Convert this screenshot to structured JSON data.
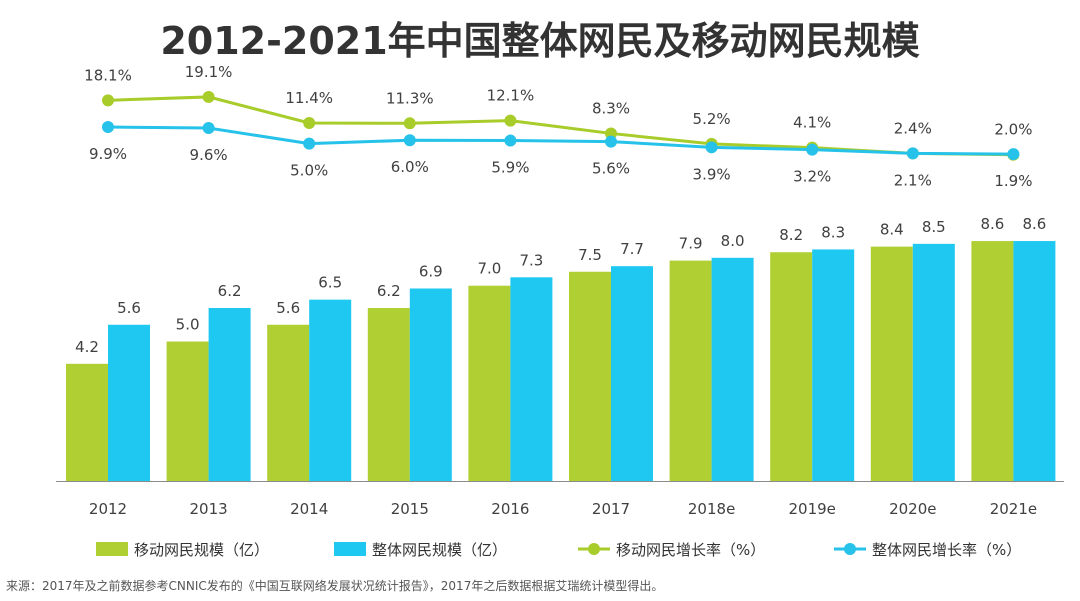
{
  "title": "2012-2021年中国整体网民及移动网民规模",
  "source": "来源：2017年及之前数据参考CNNIC发布的《中国互联网络发展状况统计报告》，2017年之后数据根据艾瑞统计模型得出。",
  "colors": {
    "mobile_users": "#B0CF33",
    "total_users": "#1EC8F0",
    "mobile_growth": "#A8CC2A",
    "total_growth": "#26C2EA",
    "text": "#404040"
  },
  "chart_data": {
    "type": "bar",
    "categories": [
      "2012",
      "2013",
      "2014",
      "2015",
      "2016",
      "2017",
      "2018e",
      "2019e",
      "2020e",
      "2021e"
    ],
    "series": [
      {
        "name": "移动网民规模（亿）",
        "kind": "bar",
        "values": [
          4.2,
          5.0,
          5.6,
          6.2,
          7.0,
          7.5,
          7.9,
          8.2,
          8.4,
          8.6
        ],
        "labels": [
          "4.2",
          "5.0",
          "5.6",
          "6.2",
          "7.0",
          "7.5",
          "7.9",
          "8.2",
          "8.4",
          "8.6"
        ]
      },
      {
        "name": "整体网民规模（亿）",
        "kind": "bar",
        "values": [
          5.6,
          6.2,
          6.5,
          6.9,
          7.3,
          7.7,
          8.0,
          8.3,
          8.5,
          8.6
        ],
        "labels": [
          "5.6",
          "6.2",
          "6.5",
          "6.9",
          "7.3",
          "7.7",
          "8.0",
          "8.3",
          "8.5",
          "8.6"
        ]
      },
      {
        "name": "移动网民增长率（%）",
        "kind": "line",
        "values": [
          18.1,
          19.1,
          11.4,
          11.3,
          12.1,
          8.3,
          5.2,
          4.1,
          2.4,
          2.0
        ],
        "labels": [
          "18.1%",
          "19.1%",
          "11.4%",
          "11.3%",
          "12.1%",
          "8.3%",
          "5.2%",
          "4.1%",
          "2.4%",
          "2.0%"
        ]
      },
      {
        "name": "整体网民增长率（%）",
        "kind": "line",
        "values": [
          9.9,
          9.6,
          5.0,
          6.0,
          5.9,
          5.6,
          3.9,
          3.2,
          2.1,
          1.9
        ],
        "labels": [
          "9.9%",
          "9.6%",
          "5.0%",
          "6.0%",
          "5.9%",
          "5.6%",
          "3.9%",
          "3.2%",
          "2.1%",
          "1.9%"
        ]
      }
    ],
    "legend_position": "bottom",
    "grid": false
  }
}
